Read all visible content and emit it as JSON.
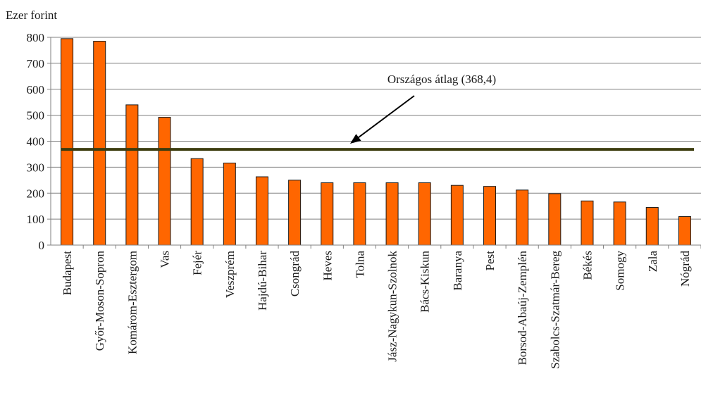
{
  "chart_data": {
    "type": "bar",
    "unit_label": "Ezer forint",
    "categories": [
      "Budapest",
      "Győr-Moson-Sopron",
      "Komárom-Esztergom",
      "Vas",
      "Fejér",
      "Veszprém",
      "Hajdú-Bihar",
      "Csongrád",
      "Heves",
      "Tolna",
      "Jász-Nagykun-Szolnok",
      "Bács-Kiskun",
      "Baranya",
      "Pest",
      "Borsod-Abaúj-Zemplén",
      "Szabolcs-Szatmár-Bereg",
      "Békés",
      "Somogy",
      "Zala",
      "Nógrád"
    ],
    "values": [
      795,
      785,
      540,
      492,
      333,
      316,
      263,
      250,
      240,
      240,
      240,
      240,
      230,
      226,
      212,
      198,
      170,
      166,
      145,
      110
    ],
    "ylim": [
      0,
      800
    ],
    "yticks": [
      0,
      100,
      200,
      300,
      400,
      500,
      600,
      700,
      800
    ],
    "grid": true,
    "reference_line": {
      "value": 368.4,
      "label": "Országos átlag (368,4)",
      "color": "#3b3b0e"
    },
    "colors": {
      "bar_fill": "#ff6600",
      "bar_stroke": "#1a1a1a",
      "grid": "#808080",
      "axis": "#808080"
    }
  }
}
